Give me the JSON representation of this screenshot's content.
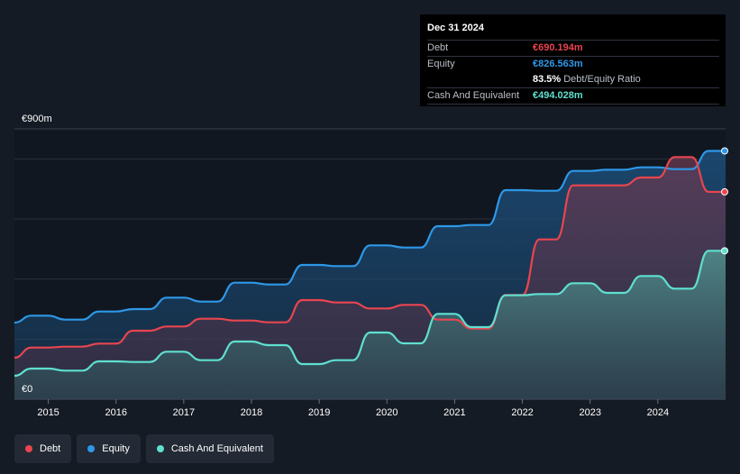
{
  "tooltip": {
    "date": "Dec 31 2024",
    "rows": [
      {
        "label": "Debt",
        "value": "€690.194m",
        "color": "#e9454f"
      },
      {
        "label": "Equity",
        "value": "€826.563m",
        "color": "#2e98e8"
      },
      {
        "label": "",
        "value": "83.5%",
        "suffix": "Debt/Equity Ratio",
        "color": "#ffffff"
      },
      {
        "label": "Cash And Equivalent",
        "value": "€494.028m",
        "color": "#5fe0d0"
      }
    ]
  },
  "legend": [
    {
      "label": "Debt",
      "color": "#e9454f"
    },
    {
      "label": "Equity",
      "color": "#2e98e8"
    },
    {
      "label": "Cash And Equivalent",
      "color": "#5fe0d0"
    }
  ],
  "chart_data": {
    "type": "area",
    "y_top_label": "€900m",
    "y_bottom_label": "€0",
    "ylim": [
      0,
      900
    ],
    "xlim": [
      2014.5,
      2025.0
    ],
    "x_ticks": [
      "2015",
      "2016",
      "2017",
      "2018",
      "2019",
      "2020",
      "2021",
      "2022",
      "2023",
      "2024"
    ],
    "grid": true,
    "legend_position": "bottom-left",
    "series": [
      {
        "name": "Equity",
        "color": "#2e98e8",
        "points": [
          [
            2014.5,
            255
          ],
          [
            2014.75,
            278
          ],
          [
            2015.0,
            278
          ],
          [
            2015.25,
            265
          ],
          [
            2015.5,
            265
          ],
          [
            2015.75,
            292
          ],
          [
            2016.0,
            292
          ],
          [
            2016.25,
            300
          ],
          [
            2016.5,
            300
          ],
          [
            2016.75,
            338
          ],
          [
            2017.0,
            338
          ],
          [
            2017.25,
            325
          ],
          [
            2017.5,
            325
          ],
          [
            2017.75,
            388
          ],
          [
            2018.0,
            388
          ],
          [
            2018.25,
            382
          ],
          [
            2018.5,
            382
          ],
          [
            2018.75,
            447
          ],
          [
            2019.0,
            447
          ],
          [
            2019.25,
            443
          ],
          [
            2019.5,
            443
          ],
          [
            2019.75,
            512
          ],
          [
            2020.0,
            512
          ],
          [
            2020.25,
            505
          ],
          [
            2020.5,
            505
          ],
          [
            2020.75,
            576
          ],
          [
            2021.0,
            576
          ],
          [
            2021.25,
            580
          ],
          [
            2021.5,
            580
          ],
          [
            2021.75,
            696
          ],
          [
            2022.0,
            696
          ],
          [
            2022.25,
            694
          ],
          [
            2022.5,
            694
          ],
          [
            2022.75,
            760
          ],
          [
            2023.0,
            760
          ],
          [
            2023.25,
            764
          ],
          [
            2023.5,
            764
          ],
          [
            2023.75,
            772
          ],
          [
            2024.0,
            772
          ],
          [
            2024.25,
            766
          ],
          [
            2024.5,
            766
          ],
          [
            2024.75,
            826.563
          ],
          [
            2025.0,
            826.563
          ]
        ]
      },
      {
        "name": "Debt",
        "color": "#e9454f",
        "points": [
          [
            2014.5,
            138
          ],
          [
            2014.75,
            172
          ],
          [
            2015.0,
            172
          ],
          [
            2015.25,
            175
          ],
          [
            2015.5,
            175
          ],
          [
            2015.75,
            185
          ],
          [
            2016.0,
            185
          ],
          [
            2016.25,
            228
          ],
          [
            2016.5,
            228
          ],
          [
            2016.75,
            242
          ],
          [
            2017.0,
            242
          ],
          [
            2017.25,
            268
          ],
          [
            2017.5,
            268
          ],
          [
            2017.75,
            262
          ],
          [
            2018.0,
            262
          ],
          [
            2018.25,
            256
          ],
          [
            2018.5,
            256
          ],
          [
            2018.75,
            330
          ],
          [
            2019.0,
            330
          ],
          [
            2019.25,
            322
          ],
          [
            2019.5,
            322
          ],
          [
            2019.75,
            302
          ],
          [
            2020.0,
            302
          ],
          [
            2020.25,
            314
          ],
          [
            2020.5,
            314
          ],
          [
            2020.75,
            265
          ],
          [
            2021.0,
            265
          ],
          [
            2021.25,
            235
          ],
          [
            2021.5,
            235
          ],
          [
            2021.75,
            347
          ],
          [
            2022.0,
            347
          ],
          [
            2022.25,
            532
          ],
          [
            2022.5,
            532
          ],
          [
            2022.75,
            712
          ],
          [
            2023.0,
            712
          ],
          [
            2023.25,
            712
          ],
          [
            2023.5,
            712
          ],
          [
            2023.75,
            738
          ],
          [
            2024.0,
            738
          ],
          [
            2024.25,
            806
          ],
          [
            2024.5,
            806
          ],
          [
            2024.75,
            690.194
          ],
          [
            2025.0,
            690.194
          ]
        ]
      },
      {
        "name": "Cash And Equivalent",
        "color": "#5fe0d0",
        "points": [
          [
            2014.5,
            78
          ],
          [
            2014.75,
            102
          ],
          [
            2015.0,
            102
          ],
          [
            2015.25,
            95
          ],
          [
            2015.5,
            95
          ],
          [
            2015.75,
            126
          ],
          [
            2016.0,
            126
          ],
          [
            2016.25,
            124
          ],
          [
            2016.5,
            124
          ],
          [
            2016.75,
            158
          ],
          [
            2017.0,
            158
          ],
          [
            2017.25,
            130
          ],
          [
            2017.5,
            130
          ],
          [
            2017.75,
            192
          ],
          [
            2018.0,
            192
          ],
          [
            2018.25,
            180
          ],
          [
            2018.5,
            180
          ],
          [
            2018.75,
            117
          ],
          [
            2019.0,
            117
          ],
          [
            2019.25,
            130
          ],
          [
            2019.5,
            130
          ],
          [
            2019.75,
            222
          ],
          [
            2020.0,
            222
          ],
          [
            2020.25,
            186
          ],
          [
            2020.5,
            186
          ],
          [
            2020.75,
            284
          ],
          [
            2021.0,
            284
          ],
          [
            2021.25,
            240
          ],
          [
            2021.5,
            240
          ],
          [
            2021.75,
            346
          ],
          [
            2022.0,
            346
          ],
          [
            2022.25,
            350
          ],
          [
            2022.5,
            350
          ],
          [
            2022.75,
            386
          ],
          [
            2023.0,
            386
          ],
          [
            2023.25,
            354
          ],
          [
            2023.5,
            354
          ],
          [
            2023.75,
            410
          ],
          [
            2024.0,
            410
          ],
          [
            2024.25,
            368
          ],
          [
            2024.5,
            368
          ],
          [
            2024.75,
            494.028
          ],
          [
            2025.0,
            494.028
          ]
        ]
      }
    ]
  }
}
